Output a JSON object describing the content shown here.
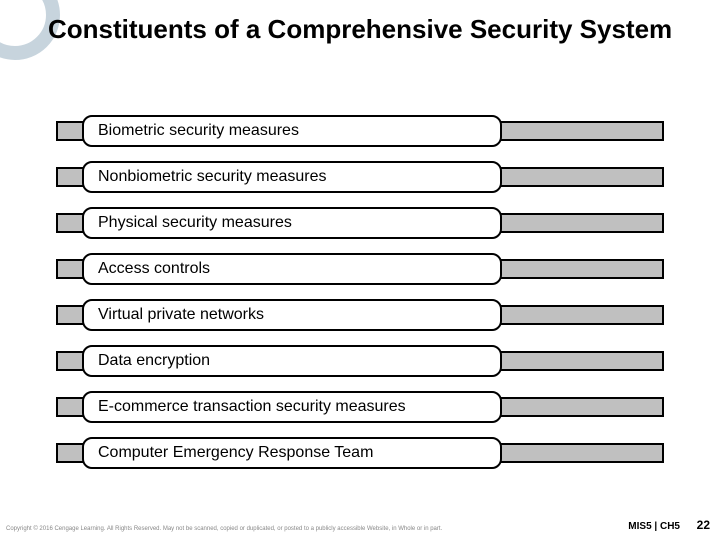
{
  "title": "Constituents of a Comprehensive Security System",
  "items": [
    "Biometric security measures",
    "Nonbiometric security measures",
    "Physical security measures",
    "Access controls",
    "Virtual private networks",
    "Data encryption",
    "E-commerce transaction security measures",
    "Computer Emergency Response Team"
  ],
  "footer": {
    "copyright": "Copyright © 2016 Cengage Learning. All Rights Reserved. May not be scanned, copied or duplicated, or posted to a publicly accessible Website, in Whole or in part.",
    "book_ref": "MIS5 | CH5",
    "page_num": "22"
  },
  "style": {
    "type": "infographic",
    "slide_width": 720,
    "slide_height": 540,
    "background_color": "#ffffff",
    "accent_ring_color": "#c7d4dd",
    "title_fontsize": 26,
    "title_fontweight": "bold",
    "title_color": "#000000",
    "item_bar_fill": "#c0c0c0",
    "item_bar_border": "#000000",
    "item_bar_border_width": 2,
    "item_pill_fill": "#ffffff",
    "item_pill_border": "#000000",
    "item_pill_border_width": 2,
    "item_pill_border_radius": 10,
    "item_pill_width": 420,
    "item_fontsize": 16,
    "item_gap": 14,
    "copyright_fontsize": 6,
    "copyright_color": "#888888",
    "bookref_fontsize": 10,
    "pagenum_fontsize": 12
  }
}
